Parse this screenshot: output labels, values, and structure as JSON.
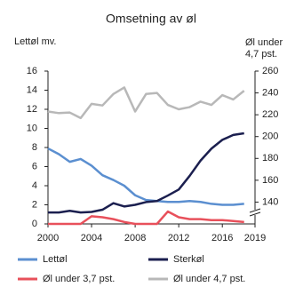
{
  "chart_data": {
    "type": "line",
    "title": "Omsetning av øl",
    "y_label": "Lettøl mv.",
    "y2_label": [
      "Øl under",
      "4,7 pst."
    ],
    "x": [
      2000,
      2001,
      2002,
      2003,
      2004,
      2005,
      2006,
      2007,
      2008,
      2009,
      2010,
      2011,
      2012,
      2013,
      2014,
      2015,
      2016,
      2017,
      2018
    ],
    "xlim": [
      2000,
      2019
    ],
    "xticks": [
      2000,
      2004,
      2008,
      2012,
      2016,
      2019
    ],
    "ylim": [
      0,
      16
    ],
    "yticks": [
      0,
      2,
      4,
      6,
      8,
      10,
      12,
      14,
      16
    ],
    "y2lim": [
      120,
      260
    ],
    "y2ticks": [
      140,
      160,
      180,
      200,
      220,
      240,
      260
    ],
    "series": [
      {
        "name": "Lettøl",
        "color": "#5b8fd0",
        "values": [
          7.9,
          7.3,
          6.5,
          6.8,
          6.1,
          5.1,
          4.6,
          4.0,
          3.0,
          2.5,
          2.4,
          2.3,
          2.3,
          2.4,
          2.3,
          2.1,
          2.0,
          2.0,
          2.1
        ]
      },
      {
        "name": "Sterkøl",
        "color": "#1b1f4f",
        "axis": "y2",
        "values": [
          130.5,
          130.5,
          132,
          130.5,
          131,
          133,
          139,
          136,
          137.5,
          140,
          141,
          146,
          151.5,
          164,
          178,
          189,
          197,
          201.5,
          203
        ]
      },
      {
        "name": "Øl under 3,7 pst.",
        "color": "#e8505b",
        "values": [
          0,
          0,
          0,
          0,
          0.8,
          0.7,
          0.5,
          0.2,
          0,
          0,
          0,
          1.3,
          0.7,
          0.5,
          0.5,
          0.4,
          0.4,
          0.3,
          0.2
        ]
      },
      {
        "name": "Øl under 4,7 pst.",
        "color": "#b8b8b8",
        "axis": "y2",
        "values": [
          223,
          221.5,
          222,
          217,
          230,
          228.5,
          239,
          245,
          223,
          239,
          240,
          229,
          225,
          227,
          232,
          229,
          238,
          234,
          242
        ]
      }
    ]
  }
}
